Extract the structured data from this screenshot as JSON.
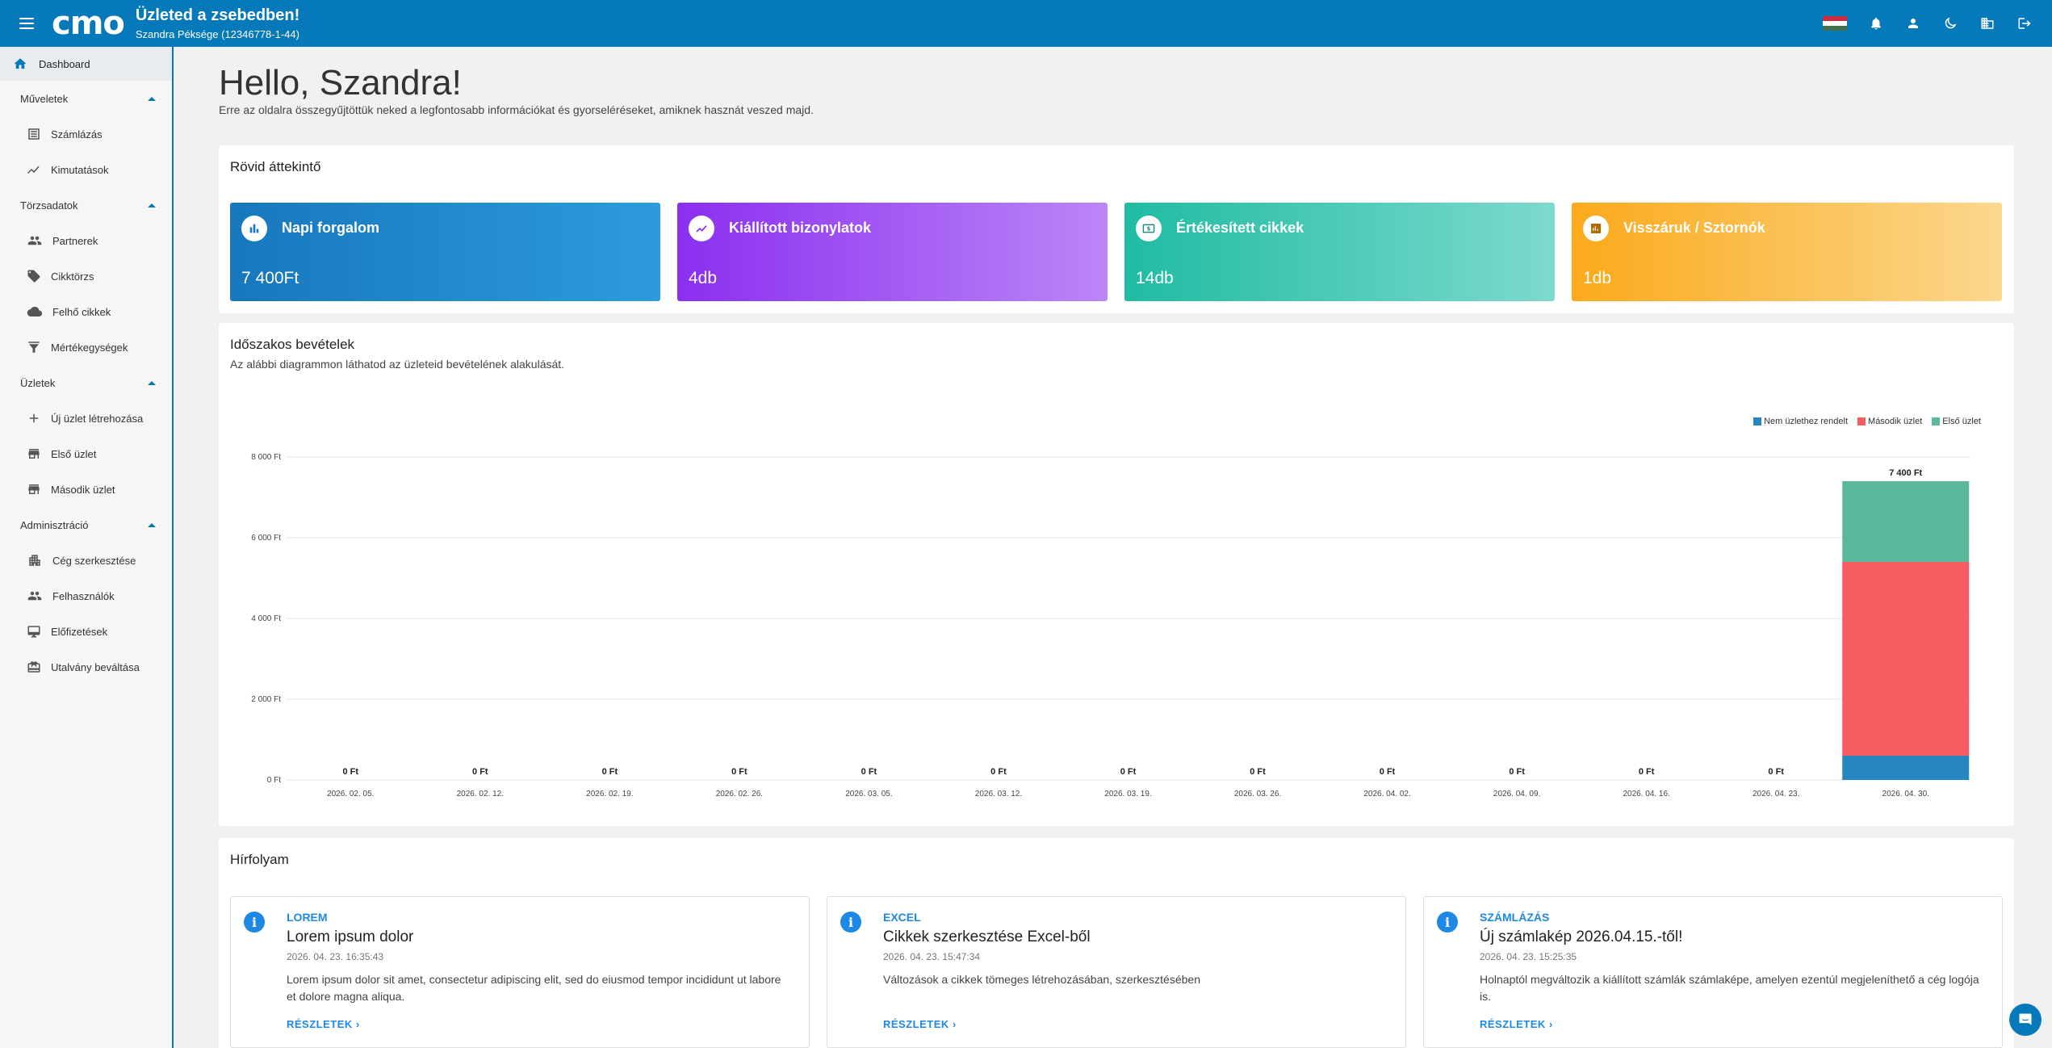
{
  "topbar": {
    "logo": "cmo",
    "title": "Üzleted a zsebedben!",
    "subtitle": "Szandra Péksége (12346778-1-44)",
    "icons": [
      "hungarian-flag",
      "bell-icon",
      "person-icon",
      "moon-icon",
      "building-icon",
      "logout-icon"
    ]
  },
  "sidebar": {
    "dashboard": "Dashboard",
    "sections": [
      {
        "label": "Műveletek",
        "items": [
          "Számlázás",
          "Kimutatások"
        ]
      },
      {
        "label": "Törzsadatok",
        "items": [
          "Partnerek",
          "Cikktörzs",
          "Felhő cikkek",
          "Mértékegységek"
        ]
      },
      {
        "label": "Üzletek",
        "items": [
          "Új üzlet létrehozása",
          "Első üzlet",
          "Második üzlet"
        ]
      },
      {
        "label": "Adminisztráció",
        "items": [
          "Cég szerkesztése",
          "Felhasználók",
          "Előfizetések",
          "Utalvány beváltása"
        ]
      }
    ]
  },
  "main": {
    "hello": "Hello, Szandra!",
    "hello_sub": "Erre az oldalra összegyűjtöttük neked a legfontosabb információkat és gyorseléréseket, amiknek hasznát veszed majd.",
    "overview": {
      "title": "Rövid áttekintő",
      "stats": [
        {
          "label": "Napi forgalom",
          "value": "7 400Ft",
          "icon": "bar-chart-icon"
        },
        {
          "label": "Kiállított bizonylatok",
          "value": "4db",
          "icon": "trending-up-icon"
        },
        {
          "label": "Értékesített cikkek",
          "value": "14db",
          "icon": "money-icon"
        },
        {
          "label": "Visszáruk / Sztornók",
          "value": "1db",
          "icon": "report-icon"
        }
      ]
    },
    "revenue": {
      "title": "Időszakos bevételek",
      "subtitle": "Az alábbi diagrammon láthatod az üzleteid bevételének alakulását."
    },
    "news": {
      "title": "Hírfolyam",
      "items": [
        {
          "category": "LOREM",
          "title": "Lorem ipsum dolor",
          "date": "2026. 04. 23. 16:35:43",
          "body": "Lorem ipsum dolor sit amet, consectetur adipiscing elit, sed do eiusmod tempor incididunt ut labore et dolore magna aliqua.",
          "link": "RÉSZLETEK"
        },
        {
          "category": "EXCEL",
          "title": "Cikkek szerkesztése Excel-ből",
          "date": "2026. 04. 23. 15:47:34",
          "body": "Változások a cikkek tömeges létrehozásában, szerkesztésében",
          "link": "RÉSZLETEK"
        },
        {
          "category": "SZÁMLÁZÁS",
          "title": "Új számlakép 2026.04.15.-től!",
          "date": "2026. 04. 23. 15:25:35",
          "body": "Holnaptól megváltozik a kiállított számlák számlaképe, amelyen ezentúl megjeleníthető a cég logója is.",
          "link": "RÉSZLETEK"
        }
      ]
    }
  },
  "chart_data": {
    "type": "bar",
    "stacked": true,
    "categories": [
      "2026. 02. 05.",
      "2026. 02. 12.",
      "2026. 02. 19.",
      "2026. 02. 26.",
      "2026. 03. 05.",
      "2026. 03. 12.",
      "2026. 03. 19.",
      "2026. 03. 26.",
      "2026. 04. 02.",
      "2026. 04. 09.",
      "2026. 04. 16.",
      "2026. 04. 23.",
      "2026. 04. 30."
    ],
    "series": [
      {
        "name": "Nem üzlethez rendelt",
        "color": "#2587bd",
        "values": [
          0,
          0,
          0,
          0,
          0,
          0,
          0,
          0,
          0,
          0,
          0,
          0,
          600
        ]
      },
      {
        "name": "Második üzlet",
        "color": "#f75c63",
        "values": [
          0,
          0,
          0,
          0,
          0,
          0,
          0,
          0,
          0,
          0,
          0,
          0,
          4800
        ]
      },
      {
        "name": "Első üzlet",
        "color": "#5cb89c",
        "values": [
          0,
          0,
          0,
          0,
          0,
          0,
          0,
          0,
          0,
          0,
          0,
          0,
          2000
        ]
      }
    ],
    "totals": [
      "0 Ft",
      "0 Ft",
      "0 Ft",
      "0 Ft",
      "0 Ft",
      "0 Ft",
      "0 Ft",
      "0 Ft",
      "0 Ft",
      "0 Ft",
      "0 Ft",
      "0 Ft",
      "7 400 Ft"
    ],
    "yticks": [
      "0 Ft",
      "2 000 Ft",
      "4 000 Ft",
      "6 000 Ft",
      "8 000 Ft"
    ],
    "ylim": [
      0,
      8000
    ],
    "grid": true,
    "legend": "top-right"
  },
  "colors": {
    "brand": "#0579b9",
    "stat1": [
      "#1877bd",
      "#2c9bdc"
    ],
    "stat2": [
      "#8b2ff0",
      "#bb86f7"
    ],
    "stat3": [
      "#20bba3",
      "#7ddacd"
    ],
    "stat4": [
      "#fbaa1b",
      "#fbd78e"
    ]
  }
}
